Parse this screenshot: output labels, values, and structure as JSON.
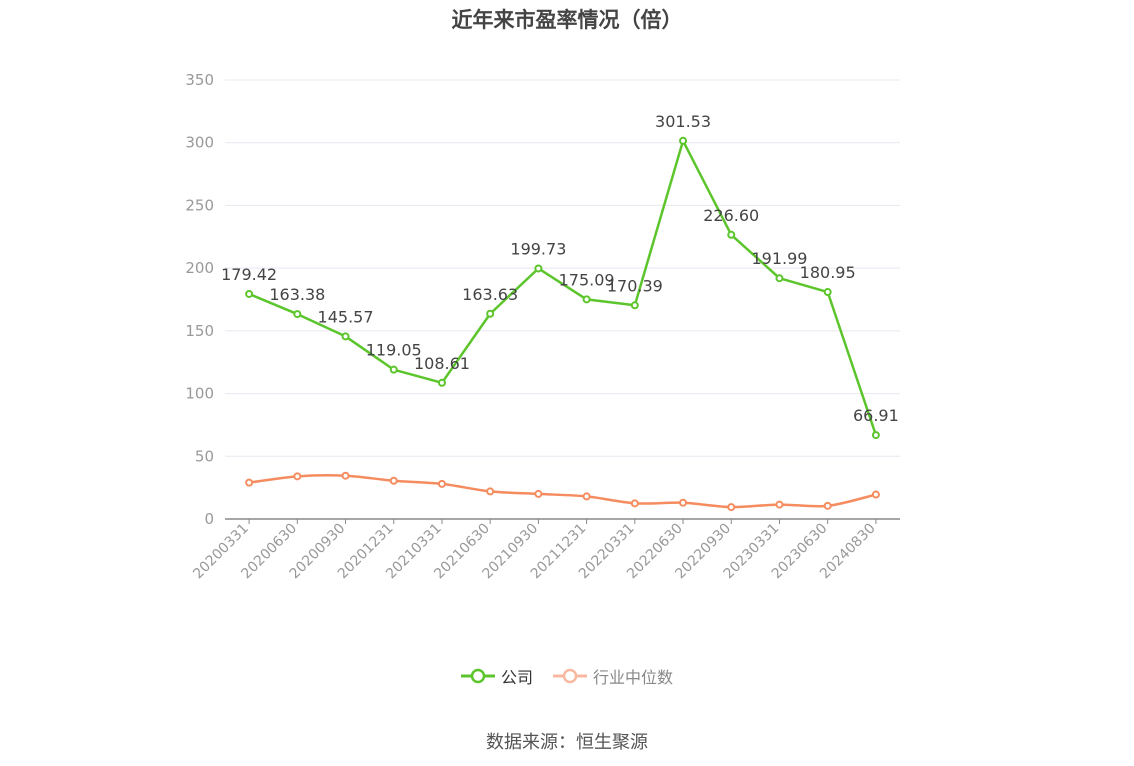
{
  "chart_data": {
    "type": "line",
    "title": "近年来市盈率情况（倍）",
    "categories": [
      "20200331",
      "20200630",
      "20200930",
      "20201231",
      "20210331",
      "20210630",
      "20210930",
      "20211231",
      "20220331",
      "20220630",
      "20220930",
      "20230331",
      "20230630",
      "20240830"
    ],
    "ylim": [
      0,
      350
    ],
    "yticks": [
      0,
      50,
      100,
      150,
      200,
      250,
      300,
      350
    ],
    "grid": true,
    "legend_position": "bottom",
    "series": [
      {
        "name": "公司",
        "color": "#5cc52c",
        "values": [
          179.42,
          163.38,
          145.57,
          119.05,
          108.61,
          163.63,
          199.73,
          175.09,
          170.39,
          301.53,
          226.6,
          191.99,
          180.95,
          66.91
        ],
        "labels": [
          "179.42",
          "163.38",
          "145.57",
          "119.05",
          "108.61",
          "163.63",
          "199.73",
          "175.09",
          "170.39",
          "301.53",
          "226.60",
          "191.99",
          "180.95",
          "66.91"
        ]
      },
      {
        "name": "行业中位数",
        "color": "#f58c5f",
        "values": [
          29,
          34,
          34.5,
          30.5,
          28,
          22,
          20,
          18,
          12.5,
          13,
          9.5,
          11.5,
          10.5,
          19.5
        ]
      }
    ]
  },
  "source_text": "数据来源：恒生聚源"
}
